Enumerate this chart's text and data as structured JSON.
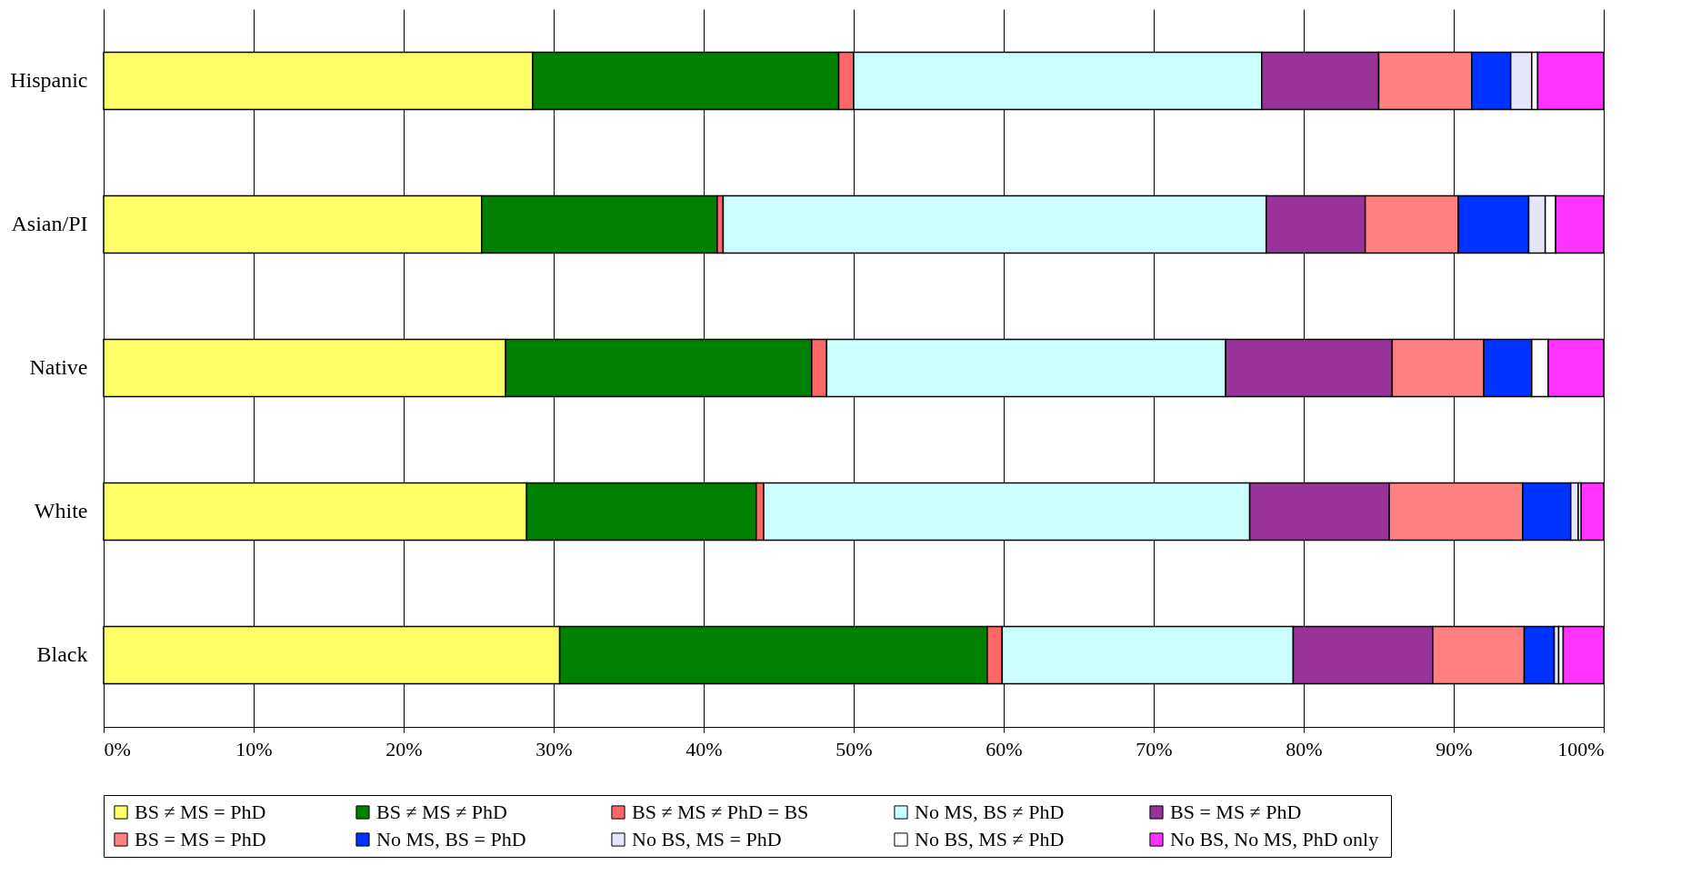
{
  "chart_data": {
    "type": "bar",
    "orientation": "horizontal",
    "stacked": true,
    "categories": [
      "Hispanic",
      "Asian/PI",
      "Native",
      "White",
      "Black"
    ],
    "xlim": [
      0,
      100
    ],
    "xticks": [
      {
        "value": 0,
        "label": "0%"
      },
      {
        "value": 10,
        "label": "10%"
      },
      {
        "value": 20,
        "label": "20%"
      },
      {
        "value": 30,
        "label": "30%"
      },
      {
        "value": 40,
        "label": "40%"
      },
      {
        "value": 50,
        "label": "50%"
      },
      {
        "value": 60,
        "label": "60%"
      },
      {
        "value": 70,
        "label": "70%"
      },
      {
        "value": 80,
        "label": "80%"
      },
      {
        "value": 90,
        "label": "90%"
      },
      {
        "value": 100,
        "label": "100%"
      }
    ],
    "grid": "x",
    "legend": "bottom",
    "series": [
      {
        "name": "BS ≠  MS = PhD",
        "color": "#ffff66",
        "values": [
          28.6,
          25.2,
          26.8,
          28.2,
          30.4
        ]
      },
      {
        "name": "BS ≠  MS ≠  PhD",
        "color": "#008000",
        "values": [
          20.4,
          15.7,
          20.4,
          15.3,
          28.5
        ]
      },
      {
        "name": "BS ≠ MS ≠ PhD = BS",
        "color": "#ff6666",
        "values": [
          1.0,
          0.4,
          1.0,
          0.5,
          1.0
        ]
      },
      {
        "name": "No MS, BS ≠ PhD",
        "color": "#ccffff",
        "values": [
          27.2,
          36.2,
          26.6,
          32.4,
          19.4
        ]
      },
      {
        "name": "BS = MS ≠ PhD",
        "color": "#993399",
        "values": [
          7.8,
          6.6,
          11.1,
          9.3,
          9.3
        ]
      },
      {
        "name": "BS = MS = PhD",
        "color": "#ff8080",
        "values": [
          6.2,
          6.2,
          6.1,
          8.9,
          6.1
        ]
      },
      {
        "name": "No MS, BS = PhD",
        "color": "#0033ff",
        "values": [
          2.6,
          4.7,
          3.2,
          3.2,
          2.0
        ]
      },
      {
        "name": "No BS,  MS = PhD",
        "color": "#e6e6fa",
        "values": [
          1.4,
          1.1,
          0.0,
          0.5,
          0.3
        ]
      },
      {
        "name": "No BS, MS ≠ PhD",
        "color": "#ffffff",
        "values": [
          0.4,
          0.7,
          1.1,
          0.2,
          0.3
        ]
      },
      {
        "name": "No BS, No MS,  PhD only",
        "color": "#ff33ff",
        "values": [
          4.4,
          3.2,
          3.7,
          1.5,
          2.7
        ]
      }
    ]
  }
}
